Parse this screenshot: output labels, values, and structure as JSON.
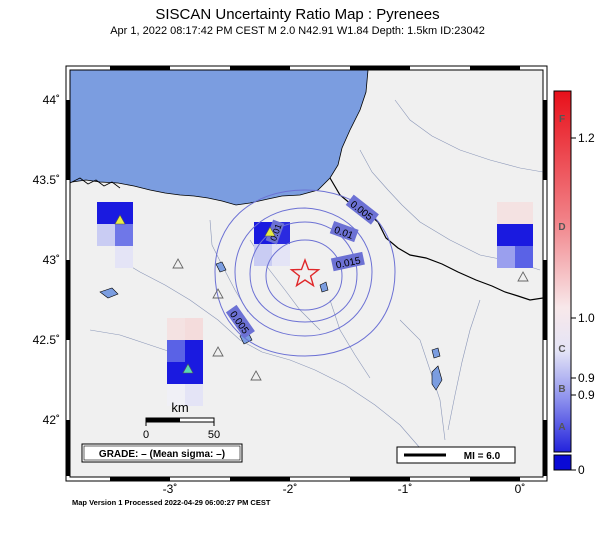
{
  "title": "SISCAN Uncertainty Ratio Map : Pyrenees",
  "subtitle": "Apr  1, 2022 08:17:42 PM CEST   M 2.0   N42.91 W1.84   Depth: 1.5km   ID:23042",
  "footer": "Map Version 1 Processed 2022-04-29 06:00:27 PM CEST",
  "axes": {
    "lat_ticks": [
      "44˚",
      "43.5˚",
      "43˚",
      "42.5˚",
      "42˚"
    ],
    "lon_ticks": [
      "-3˚",
      "-2˚",
      "-1˚",
      "0˚"
    ]
  },
  "contours": [
    "0.005",
    "0.01",
    "0.01",
    "0.015",
    "0.005"
  ],
  "scale_bar": {
    "unit": "km",
    "left": "0",
    "right": "50"
  },
  "grade_box": "GRADE: – (Mean sigma: –)",
  "mi_box": "MI = 6.0",
  "colorbar": {
    "letters": [
      "F",
      "D",
      "C",
      "B",
      "A"
    ],
    "values": [
      "1.2",
      "1.0",
      "0.9",
      "0.9",
      "0"
    ]
  },
  "colors": {
    "sea": "#7b9de0",
    "land": "#f0f0f0",
    "contour": "#6c71d4",
    "epicenter": "#e0282a",
    "cell_dark": "#1a1ae0",
    "cell_mid": "#6f77e8",
    "cell_light": "#c9ccf3",
    "cell_pink": "#f4dcdc"
  }
}
